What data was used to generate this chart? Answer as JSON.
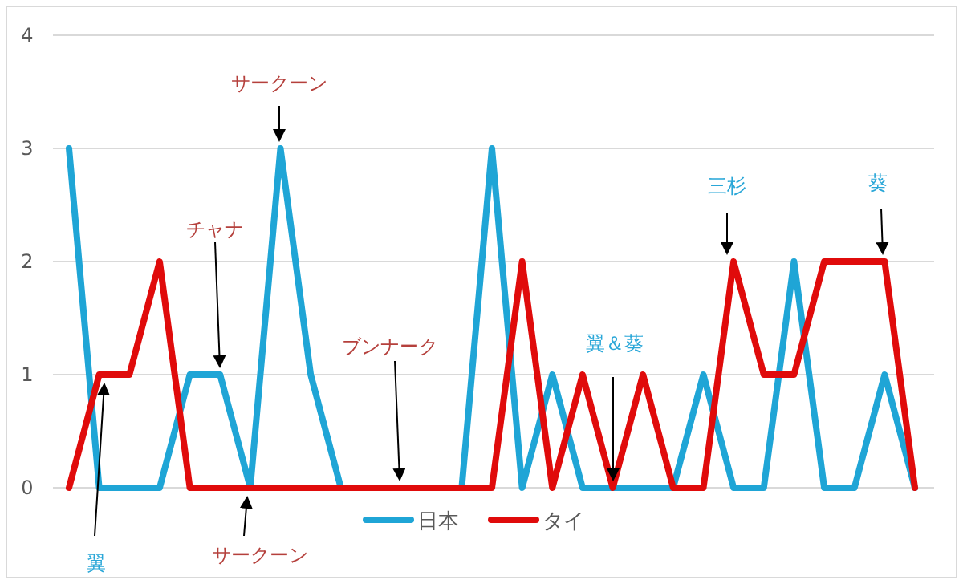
{
  "chart_data": {
    "type": "line",
    "categories": [
      null,
      null,
      null,
      null,
      null,
      null,
      null,
      null,
      null,
      null,
      null,
      null,
      null,
      null,
      null,
      null,
      null,
      null,
      null,
      null,
      null,
      null,
      null,
      null,
      null,
      null,
      null,
      null,
      null
    ],
    "series": [
      {
        "name": "日本",
        "color": "#1fa5d6",
        "values": [
          3,
          0,
          0,
          0,
          1,
          1,
          0,
          3,
          1,
          0,
          0,
          0,
          0,
          0,
          3,
          0,
          1,
          0,
          0,
          0,
          0,
          1,
          0,
          0,
          2,
          0,
          0,
          1,
          0
        ]
      },
      {
        "name": "タイ",
        "color": "#e00b0b",
        "values": [
          0,
          1,
          1,
          2,
          0,
          0,
          0,
          0,
          0,
          0,
          0,
          0,
          0,
          0,
          0,
          2,
          0,
          1,
          0,
          1,
          0,
          0,
          2,
          1,
          1,
          2,
          2,
          2,
          0
        ]
      }
    ],
    "ylim": [
      0,
      4
    ],
    "yticks": [
      0,
      1,
      2,
      3,
      4
    ],
    "grid": "y",
    "legend": "bottom",
    "marker": "none",
    "line_style": "solid",
    "annotations": [
      {
        "text": "サークーン",
        "y": 3
      },
      {
        "text": "チャナ",
        "y": 1
      },
      {
        "text": "ブンナーク",
        "y": 0
      },
      {
        "text": "サークーン",
        "y": 0
      },
      {
        "text": "翼",
        "y": 1
      },
      {
        "text": "翼＆葵",
        "y": 0
      },
      {
        "text": "三杉",
        "y": 2
      },
      {
        "text": "葵",
        "y": 2
      }
    ]
  }
}
